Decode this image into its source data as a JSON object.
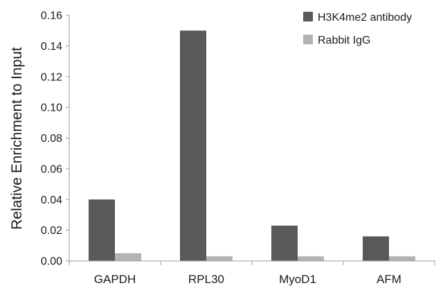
{
  "chart_data": {
    "type": "bar",
    "title": "",
    "xlabel": "",
    "ylabel": "Relative Enrichment to Input",
    "categories": [
      "GAPDH",
      "RPL30",
      "MyoD1",
      "AFM"
    ],
    "series": [
      {
        "name": "H3K4me2 antibody",
        "values": [
          0.04,
          0.15,
          0.023,
          0.016
        ],
        "color": "#595959"
      },
      {
        "name": "Rabbit IgG",
        "values": [
          0.005,
          0.003,
          0.003,
          0.003
        ],
        "color": "#b3b3b3"
      }
    ],
    "ylim": [
      0,
      0.16
    ],
    "yticks": [
      "0.00",
      "0.02",
      "0.04",
      "0.06",
      "0.08",
      "0.10",
      "0.12",
      "0.14",
      "0.16"
    ],
    "grid": false,
    "legend_position": "top-right"
  }
}
